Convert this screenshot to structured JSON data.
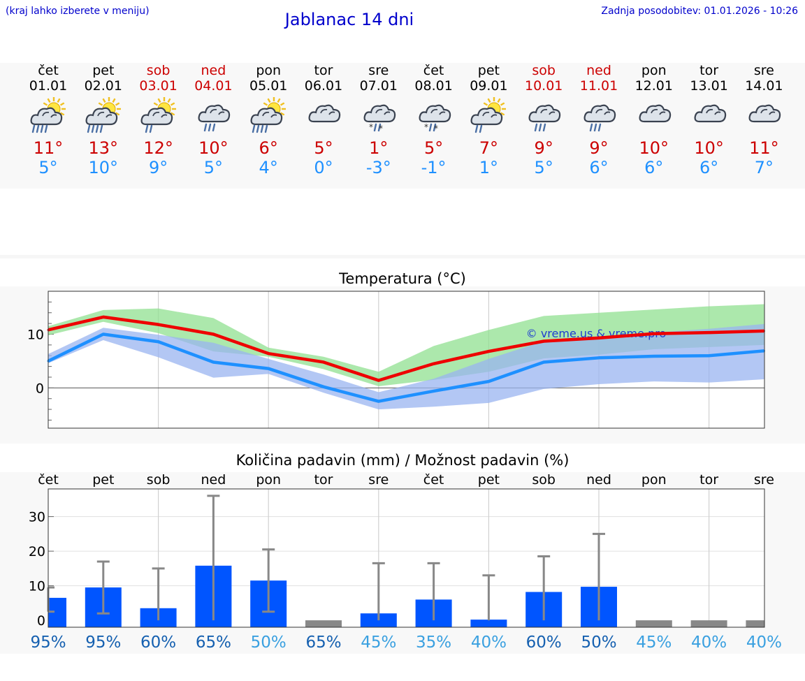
{
  "header": {
    "left_note": "(kraj lahko izberete v meniju)",
    "title": "Jablanac 14 dni",
    "updated": "Zadnja posodobitev: 01.01.2026 - 10:26"
  },
  "colors": {
    "weekday": "#000000",
    "weekend": "#cc0000",
    "tmax": "#cc0000",
    "tmin": "#1e90ff",
    "bar": "#0055ff",
    "band_green": "#90e090",
    "band_blue": "#9ab4f0",
    "pct_dark": "#1560b0",
    "pct_light": "#3aa0e0"
  },
  "days": [
    {
      "name": "čet",
      "date": "01.01",
      "weekend": false,
      "icon": "sun-cloud-rain-icon",
      "tmax": "11°",
      "tmin": "5°"
    },
    {
      "name": "pet",
      "date": "02.01",
      "weekend": false,
      "icon": "sun-cloud-rain-icon",
      "tmax": "13°",
      "tmin": "10°"
    },
    {
      "name": "sob",
      "date": "03.01",
      "weekend": true,
      "icon": "sun-cloud-drizzle-icon",
      "tmax": "12°",
      "tmin": "9°"
    },
    {
      "name": "ned",
      "date": "04.01",
      "weekend": true,
      "icon": "cloud-rain-icon",
      "tmax": "10°",
      "tmin": "5°"
    },
    {
      "name": "pon",
      "date": "05.01",
      "weekend": false,
      "icon": "sun-cloud-rain-icon",
      "tmax": "6°",
      "tmin": "4°"
    },
    {
      "name": "tor",
      "date": "06.01",
      "weekend": false,
      "icon": "cloud-icon",
      "tmax": "5°",
      "tmin": "0°"
    },
    {
      "name": "sre",
      "date": "07.01",
      "weekend": false,
      "icon": "cloud-sleet-icon",
      "tmax": "1°",
      "tmin": "-3°"
    },
    {
      "name": "čet",
      "date": "08.01",
      "weekend": false,
      "icon": "cloud-sleet-icon",
      "tmax": "5°",
      "tmin": "-1°"
    },
    {
      "name": "pet",
      "date": "09.01",
      "weekend": false,
      "icon": "sun-cloud-drizzle-icon",
      "tmax": "7°",
      "tmin": "1°"
    },
    {
      "name": "sob",
      "date": "10.01",
      "weekend": true,
      "icon": "cloud-rain-icon",
      "tmax": "9°",
      "tmin": "5°"
    },
    {
      "name": "ned",
      "date": "11.01",
      "weekend": true,
      "icon": "cloud-rain-icon",
      "tmax": "9°",
      "tmin": "6°"
    },
    {
      "name": "pon",
      "date": "12.01",
      "weekend": false,
      "icon": "cloud-icon",
      "tmax": "10°",
      "tmin": "6°"
    },
    {
      "name": "tor",
      "date": "13.01",
      "weekend": false,
      "icon": "cloud-icon",
      "tmax": "10°",
      "tmin": "6°"
    },
    {
      "name": "sre",
      "date": "14.01",
      "weekend": false,
      "icon": "cloud-icon",
      "tmax": "11°",
      "tmin": "7°"
    }
  ],
  "chart_data": [
    {
      "type": "line",
      "title": "Temperatura (°C)",
      "watermark": "© vreme.us & vreme.pro",
      "x": [
        1,
        2,
        3,
        4,
        5,
        6,
        7,
        8,
        9,
        10,
        11,
        12,
        13,
        14
      ],
      "ylim": [
        -7.5,
        18
      ],
      "yticks": [
        0,
        10
      ],
      "series": [
        {
          "name": "max",
          "color": "#ee0000",
          "values": [
            10.8,
            13.2,
            11.8,
            10.0,
            6.4,
            4.8,
            1.4,
            4.5,
            6.8,
            8.7,
            9.3,
            10.1,
            10.3,
            10.6
          ]
        },
        {
          "name": "min",
          "color": "#1e90ff",
          "values": [
            5.0,
            10.0,
            8.6,
            4.8,
            3.6,
            0.2,
            -2.5,
            -0.6,
            1.2,
            4.8,
            5.6,
            5.9,
            6.0,
            6.9
          ]
        }
      ],
      "bands": [
        {
          "name": "max-range",
          "color": "#90e090",
          "upper": [
            11.5,
            14.5,
            14.8,
            13.0,
            7.5,
            5.8,
            3.0,
            7.8,
            10.8,
            13.4,
            14.0,
            14.6,
            15.2,
            15.6
          ],
          "lower": [
            9.8,
            12.3,
            10.2,
            6.8,
            5.8,
            3.5,
            0.3,
            1.5,
            3.0,
            5.5,
            6.2,
            7.2,
            7.6,
            8.0
          ]
        },
        {
          "name": "min-range",
          "color": "#9ab4f0",
          "upper": [
            6.3,
            11.2,
            9.9,
            8.4,
            5.4,
            2.5,
            -0.8,
            1.7,
            5.4,
            8.7,
            9.6,
            10.3,
            11.0,
            11.9
          ],
          "lower": [
            4.6,
            8.9,
            5.7,
            1.9,
            2.6,
            -0.9,
            -4.0,
            -3.5,
            -2.8,
            -0.2,
            0.7,
            1.2,
            1.0,
            1.6
          ]
        }
      ]
    },
    {
      "type": "bar",
      "title": "Količina padavin (mm) / Možnost padavin (%)",
      "categories": [
        "čet",
        "pet",
        "sob",
        "ned",
        "pon",
        "tor",
        "sre",
        "čet",
        "pet",
        "sob",
        "ned",
        "pon",
        "tor",
        "sre"
      ],
      "values": [
        6.5,
        9.5,
        3.5,
        15.8,
        11.5,
        0,
        2,
        6,
        0.2,
        8.2,
        9.7,
        0,
        0,
        0
      ],
      "err_low": [
        2.5,
        2.0,
        0,
        0,
        2.5,
        0,
        0,
        0,
        0,
        0,
        0,
        0,
        0,
        0
      ],
      "err_high": [
        9.5,
        17.0,
        15.0,
        36.0,
        20.5,
        0,
        16.5,
        16.5,
        13.0,
        18.5,
        25.0,
        0,
        0,
        0
      ],
      "ylim": [
        -2,
        38
      ],
      "yticks": [
        0,
        10,
        20,
        30
      ],
      "percent": [
        "95%",
        "95%",
        "60%",
        "65%",
        "50%",
        "65%",
        "45%",
        "35%",
        "40%",
        "60%",
        "50%",
        "45%",
        "40%",
        "40%"
      ],
      "percent_light": [
        false,
        false,
        false,
        false,
        true,
        false,
        true,
        true,
        true,
        false,
        false,
        true,
        true,
        true
      ]
    }
  ]
}
